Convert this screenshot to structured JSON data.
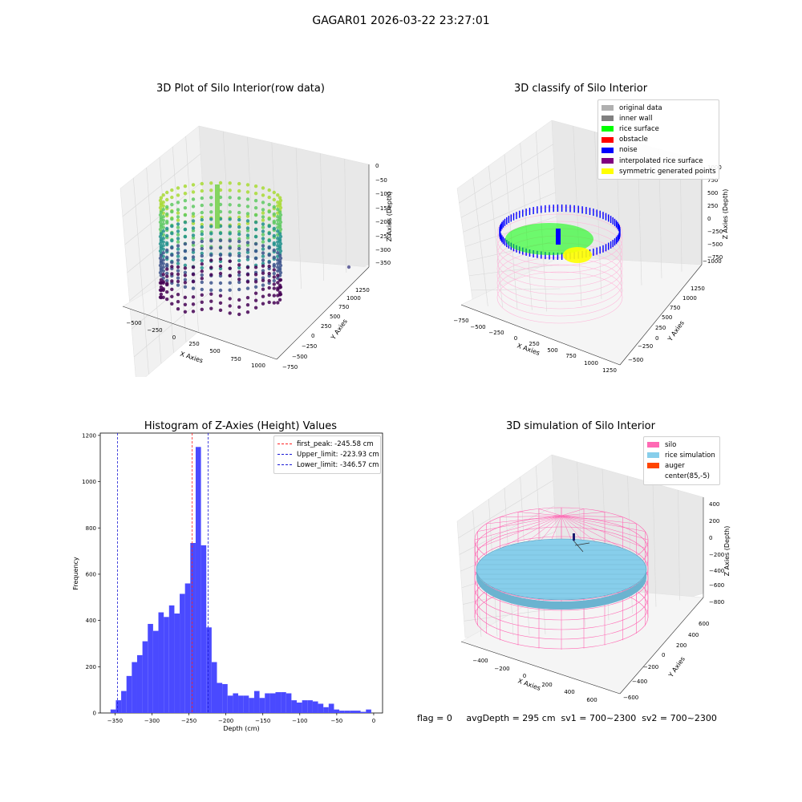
{
  "suptitle": "GAGAR01 2026-03-22 23:27:01",
  "status_text": "flag = 0     avgDepth = 295 cm  sv1 = 700~2300  sv2 = 700~2300",
  "colors": {
    "hist": "#4a4aff",
    "peak": "#ff2222",
    "limits": "#1a1ad6",
    "silo": "#ff69b4",
    "rice": "#87ceeb",
    "auger": "#ff4500"
  },
  "chart_data": [
    {
      "type": "scatter3d",
      "title": "3D Plot of Silo Interior(row data)",
      "xlabel": "X Axies",
      "ylabel": "Y Axies",
      "zlabel": "Z Axies (Depth)",
      "x_ticks": [
        "−500",
        "−250",
        "0",
        "250",
        "500",
        "750",
        "1000"
      ],
      "y_ticks": [
        "−750",
        "−500",
        "−250",
        "0",
        "250",
        "500",
        "750",
        "1000",
        "1250"
      ],
      "z_ticks": [
        "0",
        "−50",
        "−100",
        "−150",
        "−200",
        "−250",
        "−300",
        "−350"
      ],
      "colormap": "viridis"
    },
    {
      "type": "scatter3d",
      "title": "3D classify of Silo Interior",
      "xlabel": "X Axies",
      "ylabel": "Y Axies",
      "zlabel": "Z Axies (Depth)",
      "x_ticks": [
        "−750",
        "−500",
        "−250",
        "0",
        "250",
        "500",
        "750",
        "1000",
        "1250"
      ],
      "y_ticks": [
        "−500",
        "−250",
        "0",
        "250",
        "500",
        "750",
        "1000",
        "1250"
      ],
      "z_ticks": [
        "1000",
        "750",
        "500",
        "250",
        "0",
        "−250",
        "−500",
        "−750",
        "−1000"
      ],
      "legend": [
        {
          "label": "original data",
          "color": "#b0b0b0"
        },
        {
          "label": "inner wall",
          "color": "#808080"
        },
        {
          "label": "rice surface",
          "color": "#00ff00"
        },
        {
          "label": "obstacle",
          "color": "#ff0000"
        },
        {
          "label": "noise",
          "color": "#0000ff"
        },
        {
          "label": "interpolated rice surface",
          "color": "#800080"
        },
        {
          "label": "symmetric generated points",
          "color": "#ffff00"
        }
      ]
    },
    {
      "type": "bar",
      "title": "Histogram of Z-Axies (Height) Values",
      "xlabel": "Depth (cm)",
      "ylabel": "Frequency",
      "xlim": [
        -370,
        12
      ],
      "ylim": [
        0,
        1210
      ],
      "x_ticks": [
        -350,
        -300,
        -250,
        -200,
        -150,
        -100,
        -50,
        0
      ],
      "y_ticks": [
        0,
        200,
        400,
        600,
        800,
        1000,
        1200
      ],
      "bin_width": 7.2,
      "bin_starts": [
        -356.1,
        -348.9,
        -341.7,
        -334.5,
        -327.3,
        -320.1,
        -312.9,
        -305.7,
        -298.5,
        -291.3,
        -284.1,
        -276.9,
        -269.7,
        -262.5,
        -255.3,
        -248.1,
        -240.9,
        -233.7,
        -226.5,
        -219.3,
        -212.1,
        -204.9,
        -197.7,
        -190.5,
        -183.3,
        -176.1,
        -168.9,
        -161.7,
        -154.5,
        -147.3,
        -140.1,
        -132.9,
        -125.7,
        -118.5,
        -111.3,
        -104.1,
        -96.9,
        -89.7,
        -82.5,
        -75.3,
        -68.1,
        -60.9,
        -53.7,
        -46.5,
        -39.3,
        -32.1,
        -24.9,
        -17.7,
        -10.5,
        -3.3
      ],
      "values": [
        15,
        55,
        95,
        160,
        220,
        250,
        310,
        385,
        355,
        435,
        415,
        465,
        430,
        515,
        560,
        735,
        1150,
        725,
        370,
        220,
        130,
        125,
        75,
        85,
        75,
        75,
        65,
        95,
        65,
        85,
        85,
        90,
        90,
        85,
        55,
        45,
        55,
        55,
        50,
        40,
        25,
        40,
        15,
        10,
        10,
        10,
        10,
        5,
        15,
        0
      ],
      "vlines": [
        {
          "label": "first_peak: -245.58 cm",
          "x": -245.58,
          "color": "#ff2222"
        },
        {
          "label": "Upper_limit: -223.93 cm",
          "x": -223.93,
          "color": "#1a1ad6"
        },
        {
          "label": "Lower_limit: -346.57 cm",
          "x": -346.57,
          "color": "#1a1ad6"
        }
      ]
    },
    {
      "type": "surface3d",
      "title": "3D simulation of Silo Interior",
      "xlabel": "X Axies",
      "ylabel": "Y Axies",
      "zlabel": "Z Axies (Depth)",
      "x_ticks": [
        "−400",
        "−200",
        "0",
        "200",
        "400",
        "600"
      ],
      "y_ticks": [
        "−600",
        "−400",
        "−200",
        "0",
        "200",
        "400",
        "600"
      ],
      "z_ticks": [
        "400",
        "200",
        "0",
        "−200",
        "−400",
        "−600",
        "−800"
      ],
      "legend": [
        {
          "label": "silo",
          "color": "#ff69b4"
        },
        {
          "label": "rice simulation",
          "color": "#87ceeb"
        },
        {
          "label": "auger",
          "color": "#ff4500"
        },
        {
          "label": "center(85,-5)",
          "color": ""
        }
      ]
    }
  ]
}
